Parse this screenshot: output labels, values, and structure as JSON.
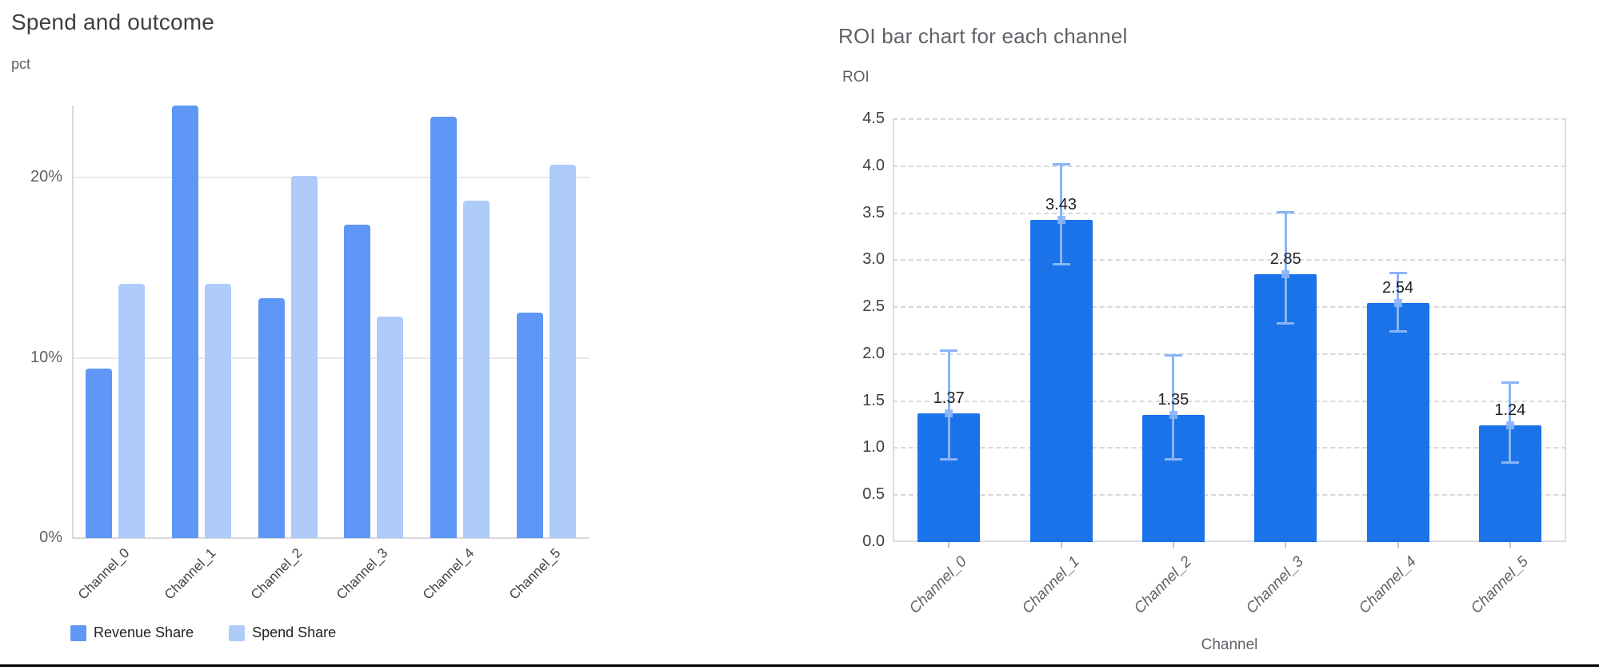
{
  "chart_data": [
    {
      "type": "bar",
      "title": "Spend and outcome",
      "ylabel": "pct",
      "xlabel": "",
      "categories": [
        "Channel_0",
        "Channel_1",
        "Channel_2",
        "Channel_3",
        "Channel_4",
        "Channel_5"
      ],
      "series": [
        {
          "name": "Revenue Share",
          "color": "#5e97f6",
          "values": [
            9.4,
            24.0,
            13.3,
            17.4,
            23.4,
            12.5
          ]
        },
        {
          "name": "Spend Share",
          "color": "#aecbfa",
          "values": [
            14.1,
            14.1,
            20.1,
            12.3,
            18.7,
            20.7
          ]
        }
      ],
      "ylim": [
        0,
        24
      ],
      "yticks": [
        0,
        10,
        20
      ],
      "ytick_labels": [
        "0%",
        "10%",
        "20%"
      ],
      "grid": "solid",
      "legend_position": "bottom"
    },
    {
      "type": "bar",
      "title": "ROI bar chart for each channel",
      "ylabel": "ROI",
      "xlabel": "Channel",
      "categories": [
        "Channel_0",
        "Channel_1",
        "Channel_2",
        "Channel_3",
        "Channel_4",
        "Channel_5"
      ],
      "series": [
        {
          "name": "ROI",
          "color": "#1a73e8",
          "values": [
            1.37,
            3.43,
            1.35,
            2.85,
            2.54,
            1.24
          ]
        }
      ],
      "bar_labels": [
        "1.37",
        "3.43",
        "1.35",
        "2.85",
        "2.54",
        "1.24"
      ],
      "error_low": [
        0.88,
        2.95,
        0.88,
        2.32,
        2.24,
        0.84
      ],
      "error_high": [
        2.04,
        4.02,
        1.99,
        3.51,
        2.87,
        1.7
      ],
      "error_color": "#8ab4f8",
      "ylim": [
        0,
        4.5
      ],
      "yticks": [
        0,
        0.5,
        1.0,
        1.5,
        2.0,
        2.5,
        3.0,
        3.5,
        4.0,
        4.5
      ],
      "ytick_labels": [
        "0.0",
        "0.5",
        "1.0",
        "1.5",
        "2.0",
        "2.5",
        "3.0",
        "3.5",
        "4.0",
        "4.5"
      ],
      "grid": "dashed",
      "legend_position": "none"
    }
  ],
  "colors": {
    "left_gridline": "#e8e8e8",
    "left_axis_line": "#d9d9d9",
    "right_plot_border": "#dadce0",
    "bottom_rule": "#000000"
  }
}
